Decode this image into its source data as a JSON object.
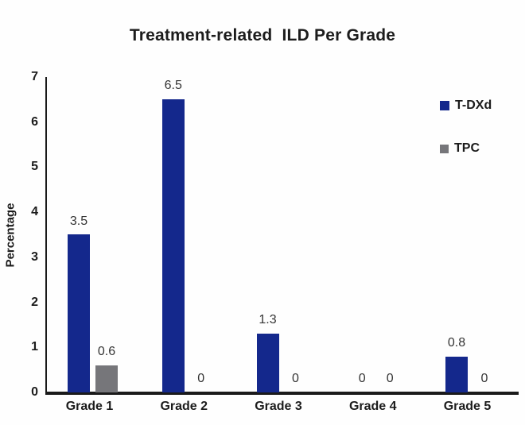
{
  "title": "Treatment-related  ILD Per Grade",
  "y_axis": {
    "label": "Percentage",
    "ticks": [
      "0",
      "1",
      "2",
      "3",
      "4",
      "5",
      "6",
      "7"
    ]
  },
  "legend": {
    "items": [
      {
        "name": "T-DXd",
        "color": "#14288c"
      },
      {
        "name": "TPC",
        "color": "#76767a"
      }
    ]
  },
  "colors": {
    "t_dxd_bar": "#14288c",
    "tpc_bar": "#76767a",
    "axis": "#1a1a1a"
  },
  "chart_data": {
    "type": "bar",
    "title": "Treatment-related ILD Per Grade",
    "categories": [
      "Grade 1",
      "Grade 2",
      "Grade 3",
      "Grade 4",
      "Grade 5"
    ],
    "series": [
      {
        "name": "T-DXd",
        "color": "#14288c",
        "values": [
          3.5,
          6.5,
          1.3,
          0,
          0.8
        ]
      },
      {
        "name": "TPC",
        "color": "#76767a",
        "values": [
          0.6,
          0,
          0,
          0,
          0
        ]
      }
    ],
    "data_labels": [
      [
        "3.5",
        "6.5",
        "1.3",
        "0",
        "0.8"
      ],
      [
        "0.6",
        "0",
        "0",
        "0",
        "0"
      ]
    ],
    "xlabel": "",
    "ylabel": "Percentage",
    "ylim": [
      0,
      7
    ],
    "grid": false,
    "legend_position": "upper right"
  }
}
